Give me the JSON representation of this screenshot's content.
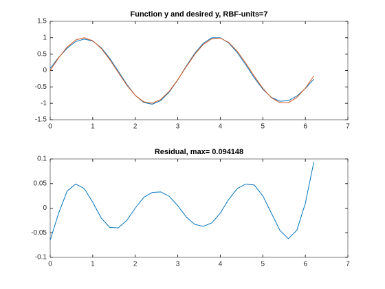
{
  "chart_data": [
    {
      "type": "line",
      "title": "Function y and desired y, RBF-units=7",
      "x": [
        0,
        0.2,
        0.4,
        0.6,
        0.8,
        1.0,
        1.2,
        1.4,
        1.6,
        1.8,
        2.0,
        2.2,
        2.4,
        2.6,
        2.8,
        3.0,
        3.2,
        3.4,
        3.6,
        3.8,
        4.0,
        4.2,
        4.4,
        4.6,
        4.8,
        5.0,
        5.2,
        5.4,
        5.6,
        5.8,
        6.0,
        6.2
      ],
      "series": [
        {
          "color": "#0072bd",
          "values": [
            0.065,
            0.399,
            0.682,
            0.883,
            0.96,
            0.897,
            0.695,
            0.374,
            -0.018,
            -0.418,
            -0.757,
            -0.974,
            -1.028,
            -0.916,
            -0.655,
            -0.284,
            0.135,
            0.527,
            0.831,
            0.998,
            0.999,
            0.837,
            0.545,
            0.174,
            -0.222,
            -0.569,
            -0.818,
            -0.936,
            -0.918,
            -0.778,
            -0.547,
            -0.259
          ]
        },
        {
          "color": "#d95319",
          "values": [
            0,
            0.389,
            0.717,
            0.932,
            1.0,
            0.909,
            0.675,
            0.335,
            -0.058,
            -0.443,
            -0.757,
            -0.952,
            -0.996,
            -0.883,
            -0.631,
            -0.279,
            0.117,
            0.494,
            0.794,
            0.968,
            0.989,
            0.855,
            0.585,
            0.223,
            -0.175,
            -0.544,
            -0.828,
            -0.981,
            -0.98,
            -0.823,
            -0.537,
            -0.165
          ]
        }
      ],
      "xlim": [
        0,
        7
      ],
      "xticks": [
        0,
        1,
        2,
        3,
        4,
        5,
        6,
        7
      ],
      "ylim": [
        -1.5,
        1.5
      ],
      "yticks": [
        -1.5,
        -1,
        -0.5,
        0,
        0.5,
        1,
        1.5
      ]
    },
    {
      "type": "line",
      "title": "Residual, max= 0.094148",
      "x": [
        0,
        0.2,
        0.4,
        0.6,
        0.8,
        1.0,
        1.2,
        1.4,
        1.6,
        1.8,
        2.0,
        2.2,
        2.4,
        2.6,
        2.8,
        3.0,
        3.2,
        3.4,
        3.6,
        3.8,
        4.0,
        4.2,
        4.4,
        4.6,
        4.8,
        5.0,
        5.2,
        5.4,
        5.6,
        5.8,
        6.0,
        6.2
      ],
      "series": [
        {
          "color": "#0072bd",
          "values": [
            -0.065,
            -0.01,
            0.035,
            0.049,
            0.04,
            0.012,
            -0.02,
            -0.039,
            -0.04,
            -0.025,
            0.0,
            0.022,
            0.032,
            0.033,
            0.024,
            0.005,
            -0.018,
            -0.033,
            -0.037,
            -0.03,
            -0.01,
            0.018,
            0.04,
            0.049,
            0.047,
            0.025,
            -0.01,
            -0.045,
            -0.062,
            -0.045,
            0.01,
            0.094
          ]
        }
      ],
      "xlim": [
        0,
        7
      ],
      "xticks": [
        0,
        1,
        2,
        3,
        4,
        5,
        6,
        7
      ],
      "ylim": [
        -0.1,
        0.1
      ],
      "yticks": [
        -0.1,
        -0.05,
        0,
        0.05,
        0.1
      ]
    }
  ]
}
